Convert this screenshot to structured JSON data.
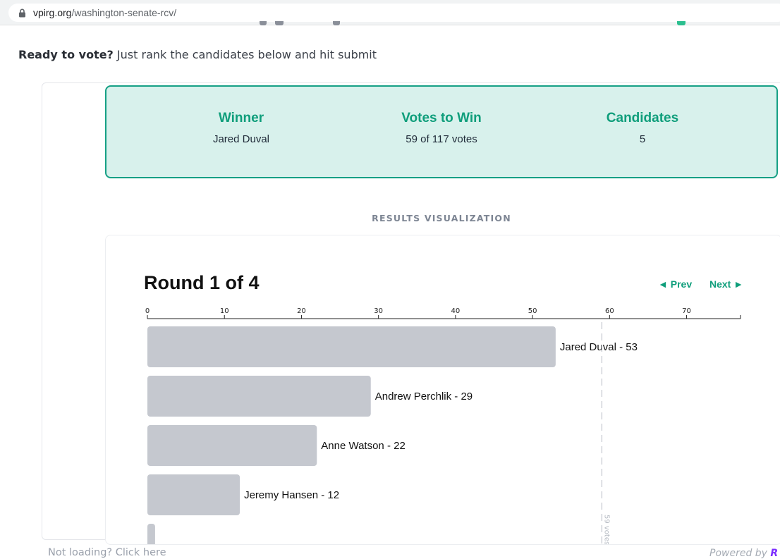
{
  "browser": {
    "url_domain": "vpirg.org",
    "url_path": "/washington-senate-rcv/"
  },
  "page": {
    "intro_bold": "Ready to vote?",
    "intro_text": " Just rank the candidates below and hit submit"
  },
  "summary": {
    "winner_label": "Winner",
    "winner_value": "Jared Duval",
    "votes_label": "Votes to Win",
    "votes_value": "59 of 117 votes",
    "candidates_label": "Candidates",
    "candidates_value": "5"
  },
  "viz": {
    "section_label": "RESULTS VISUALIZATION",
    "round_title": "Round 1 of 4",
    "prev_label": "◄ Prev",
    "next_label": "Next ►"
  },
  "chart_data": {
    "type": "bar",
    "orientation": "horizontal",
    "categories": [
      "Jared Duval",
      "Andrew Perchlik",
      "Anne Watson",
      "Jeremy Hansen",
      ""
    ],
    "values": [
      53,
      29,
      22,
      12,
      1
    ],
    "bar_labels": [
      "Jared Duval - 53",
      "Andrew Perchlik - 29",
      "Anne Watson - 22",
      "Jeremy Hansen - 12",
      ""
    ],
    "xlim": [
      0,
      77
    ],
    "ticks": [
      0,
      10,
      20,
      30,
      40,
      50,
      60,
      70
    ],
    "threshold": 59,
    "threshold_label": "59 votes",
    "axis_position": "top",
    "bar_color": "#c5c8cf"
  },
  "footer": {
    "not_loading": "Not loading? Click here",
    "powered_by": "Powered by ",
    "powered_brand": "R"
  }
}
